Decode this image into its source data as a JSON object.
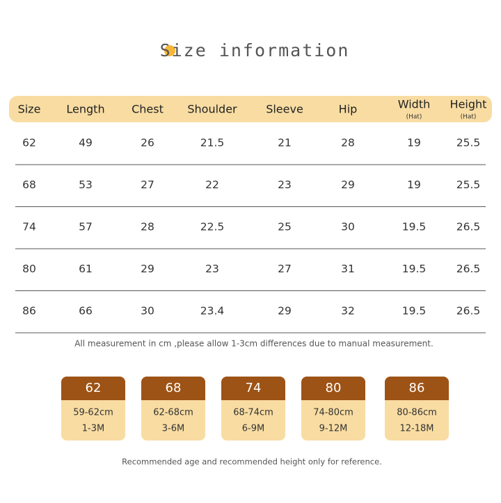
{
  "title": "Size information",
  "table": {
    "header": [
      {
        "label": "Size"
      },
      {
        "label": "Length"
      },
      {
        "label": "Chest"
      },
      {
        "label": "Shoulder"
      },
      {
        "label": "Sleeve"
      },
      {
        "label": "Hip"
      },
      {
        "label": "Width",
        "sub": "(Hat)"
      },
      {
        "label": "Height",
        "sub": "(Hat)"
      }
    ],
    "rows": [
      [
        "62",
        "49",
        "26",
        "21.5",
        "21",
        "28",
        "19",
        "25.5"
      ],
      [
        "68",
        "53",
        "27",
        "22",
        "23",
        "29",
        "19",
        "25.5"
      ],
      [
        "74",
        "57",
        "28",
        "22.5",
        "25",
        "30",
        "19.5",
        "26.5"
      ],
      [
        "80",
        "61",
        "29",
        "23",
        "27",
        "31",
        "19.5",
        "26.5"
      ],
      [
        "86",
        "66",
        "30",
        "23.4",
        "29",
        "32",
        "19.5",
        "26.5"
      ]
    ]
  },
  "note": "All measurement in cm ,please allow 1-3cm differences due to manual measurement.",
  "cards": [
    {
      "size": "62",
      "height": "59-62cm",
      "age": "1-3M"
    },
    {
      "size": "68",
      "height": "62-68cm",
      "age": "3-6M"
    },
    {
      "size": "74",
      "height": "68-74cm",
      "age": "6-9M"
    },
    {
      "size": "80",
      "height": "74-80cm",
      "age": "9-12M"
    },
    {
      "size": "86",
      "height": "80-86cm",
      "age": "12-18M"
    }
  ],
  "footer": "Recommended age and recommended height only for reference."
}
